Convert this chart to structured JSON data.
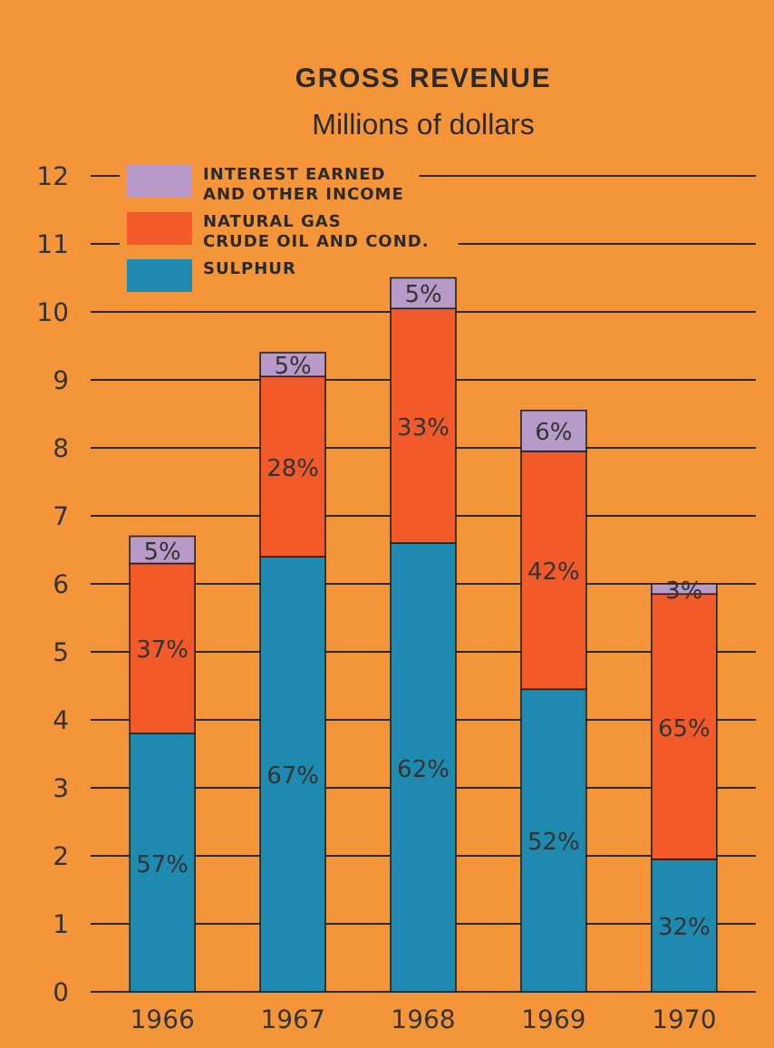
{
  "chart_data": {
    "type": "bar",
    "title": "GROSS REVENUE",
    "subtitle": "Millions of dollars",
    "categories": [
      "1966",
      "1967",
      "1968",
      "1969",
      "1970"
    ],
    "stacked": true,
    "series": [
      {
        "name": "SULPHUR",
        "color": "#1f8ab0",
        "values": [
          3.8,
          6.4,
          6.6,
          4.45,
          1.95
        ]
      },
      {
        "name": "NATURAL GAS CRUDE OIL AND COND.",
        "color": "#f25a2a",
        "values": [
          2.5,
          2.65,
          3.45,
          3.5,
          3.9
        ]
      },
      {
        "name": "INTEREST EARNED AND OTHER INCOME",
        "color": "#b89ac8",
        "values": [
          0.4,
          0.35,
          0.45,
          0.6,
          0.15
        ]
      }
    ],
    "annotations": [
      "57%",
      "67%",
      "62%",
      "52%",
      "32%",
      "37%",
      "28%",
      "33%",
      "42%",
      "65%",
      "5%",
      "5%",
      "5%",
      "6%",
      "3%"
    ],
    "ylim": [
      0,
      12
    ],
    "yticks": [
      0,
      1,
      2,
      3,
      4,
      5,
      6,
      7,
      8,
      9,
      10,
      11,
      12
    ],
    "grid": "y",
    "legend": "top left"
  }
}
